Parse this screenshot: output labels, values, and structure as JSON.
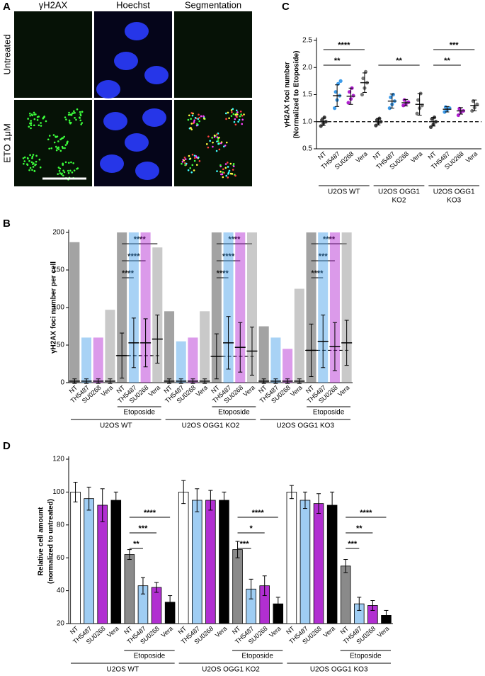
{
  "panel_labels": [
    "A",
    "B",
    "C",
    "D"
  ],
  "panel_a": {
    "columns": [
      "γH2AX",
      "Hoechst",
      "Segmentation"
    ],
    "rows": [
      "Untreated",
      "ETO 1μM"
    ]
  },
  "chart_data": [
    {
      "type": "dot",
      "y_label": [
        "γH2AX foci number",
        "(Normalized to Etoposide)"
      ],
      "categories": [
        "NT",
        "TH5487",
        "SU0268",
        "Vera",
        "NT",
        "TH5487",
        "SU0268",
        "Vera",
        "NT",
        "TH5487",
        "SU0268",
        "Vera"
      ],
      "values": [
        1.0,
        1.48,
        1.47,
        1.72,
        1.0,
        1.38,
        1.35,
        1.32,
        1.0,
        1.23,
        1.2,
        1.3
      ],
      "errors": [
        0.07,
        0.2,
        0.15,
        0.18,
        0.06,
        0.13,
        0.06,
        0.2,
        0.08,
        0.05,
        0.06,
        0.1
      ],
      "points": [
        [
          0.92,
          0.97,
          1.0,
          1.03,
          1.08
        ],
        [
          1.25,
          1.4,
          1.48,
          1.55,
          1.7,
          1.75
        ],
        [
          1.35,
          1.42,
          1.48,
          1.55,
          1.62
        ],
        [
          1.5,
          1.62,
          1.72,
          1.8,
          1.92
        ],
        [
          0.93,
          0.98,
          1.0,
          1.03,
          1.06
        ],
        [
          1.25,
          1.32,
          1.38,
          1.45,
          1.5
        ],
        [
          1.3,
          1.33,
          1.36,
          1.4
        ],
        [
          1.15,
          1.25,
          1.3,
          1.4,
          1.52
        ],
        [
          0.9,
          0.95,
          1.0,
          1.05,
          1.08
        ],
        [
          1.18,
          1.22,
          1.25,
          1.27
        ],
        [
          1.12,
          1.18,
          1.2,
          1.24
        ],
        [
          1.2,
          1.26,
          1.32,
          1.38
        ]
      ],
      "colors": [
        "#444444",
        "#3d9be9",
        "#b020d0",
        "#777777"
      ],
      "ylim": [
        0.5,
        2.5
      ],
      "yticks": [
        0.5,
        {
          "value": 1,
          "label": "1.0"
        },
        1.5,
        {
          "value": 2,
          "label": "2.0"
        },
        2.5
      ],
      "reference_line": 1,
      "groups": [
        [
          "U2OS WT"
        ],
        [
          "U2OS OGG1",
          "KO2"
        ],
        [
          "U2OS OGG1",
          "KO3"
        ]
      ],
      "annotations": [
        [
          "**",
          "****"
        ],
        [
          "**"
        ],
        [
          "**",
          "***"
        ]
      ]
    },
    {
      "type": "spread",
      "y_label": [
        "γH2AX foci number per cell"
      ],
      "categories": [
        "NT",
        "TH5487",
        "SU0268",
        "Vera",
        "NT",
        "TH5487",
        "SU0268",
        "Vera",
        "NT",
        "TH5487",
        "SU0268",
        "Vera",
        "NT",
        "TH5487",
        "SU0268",
        "Vera",
        "NT",
        "TH5487",
        "SU0268",
        "Vera",
        "NT",
        "TH5487",
        "SU0268",
        "Vera"
      ],
      "values": [
        2,
        2,
        2,
        2,
        36,
        53,
        53,
        58,
        2,
        2,
        2,
        2,
        35,
        53,
        47,
        42,
        2,
        2,
        2,
        2,
        43,
        55,
        48,
        53
      ],
      "errors": [
        3,
        3,
        3,
        3,
        30,
        33,
        32,
        32,
        3,
        3,
        3,
        3,
        30,
        35,
        33,
        32,
        3,
        3,
        3,
        3,
        35,
        35,
        32,
        30
      ],
      "max": [
        187,
        60,
        60,
        97,
        200,
        200,
        200,
        180,
        95,
        55,
        60,
        95,
        200,
        200,
        200,
        200,
        75,
        60,
        45,
        125,
        200,
        200,
        200,
        200
      ],
      "colors": [
        "#333333",
        "#3d9be9",
        "#b020d0",
        "#888888"
      ],
      "ylim": [
        0,
        200
      ],
      "yticks": [
        0,
        50,
        100,
        150,
        200
      ],
      "reference_lines": [
        36,
        35,
        43
      ],
      "groups": [
        [
          "U2OS WT"
        ],
        [
          "U2OS OGG1 KO2"
        ],
        [
          "U2OS OGG1 KO3"
        ]
      ],
      "treatment_labels": [
        "Etoposide",
        "Etoposide",
        "Etoposide"
      ],
      "annotations": [
        [
          "****",
          "****",
          "****"
        ],
        [
          "****",
          "****",
          "****"
        ],
        [
          "****",
          "***",
          "****"
        ]
      ]
    },
    {
      "type": "bar",
      "y_label": [
        "Relative cell amount",
        "(normalized to untreated)"
      ],
      "categories": [
        "NT",
        "TH5487",
        "SU0268",
        "Vera",
        "NT",
        "TH5487",
        "SU0268",
        "Vera",
        "NT",
        "TH5487",
        "SU0268",
        "Vera",
        "NT",
        "TH5487",
        "SU0268",
        "Vera",
        "NT",
        "TH5487",
        "SU0268",
        "Vera",
        "NT",
        "TH5487",
        "SU0268",
        "Vera"
      ],
      "values": [
        100,
        96,
        92,
        95,
        62,
        43,
        42,
        33,
        100,
        95,
        95,
        95,
        65,
        41,
        43,
        32,
        100,
        95,
        93,
        92,
        55,
        32,
        31,
        25
      ],
      "errors": [
        6,
        7,
        10,
        5,
        3,
        5,
        3,
        4,
        7,
        7,
        6,
        5,
        5,
        6,
        6,
        4,
        4,
        5,
        6,
        8,
        4,
        4,
        3,
        3
      ],
      "colors": [
        "#ffffff",
        "#9fcdf3",
        "#b12fd1",
        "#000000",
        "#8a8a8a",
        "#9fcdf3",
        "#b12fd1",
        "#000000"
      ],
      "ylim": [
        20,
        120
      ],
      "yticks": [
        20,
        40,
        60,
        80,
        100,
        120
      ],
      "groups": [
        [
          "U2OS WT"
        ],
        [
          "U2OS OGG1 KO2"
        ],
        [
          "U2OS OGG1 KO3"
        ]
      ],
      "treatment_labels": [
        "Etoposide",
        "Etoposide",
        "Etoposide"
      ],
      "annotations": [
        [
          "**",
          "***",
          "****"
        ],
        [
          "***",
          "*",
          "****"
        ],
        [
          "***",
          "**",
          "****"
        ]
      ]
    }
  ]
}
